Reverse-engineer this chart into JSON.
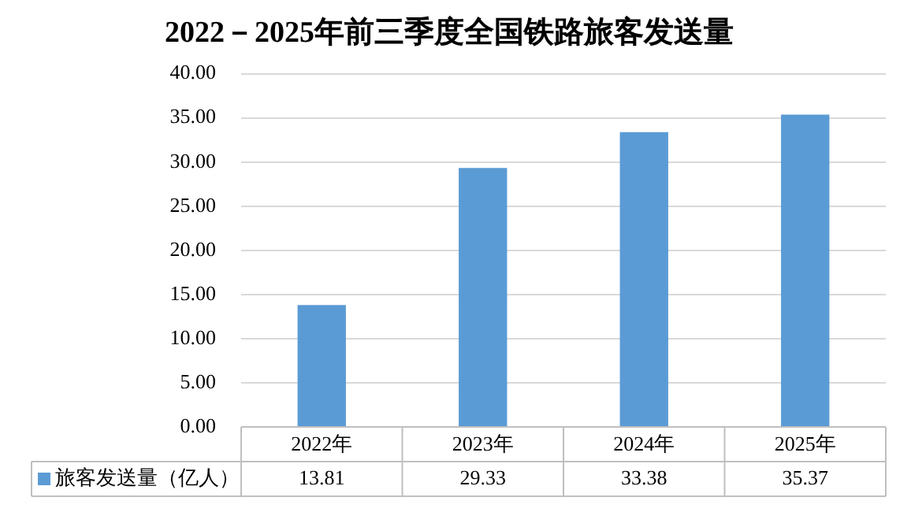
{
  "chart_data": {
    "type": "bar",
    "title": "2022－2025年前三季度全国铁路旅客发送量",
    "categories": [
      "2022年",
      "2023年",
      "2024年",
      "2025年"
    ],
    "series": [
      {
        "name": "旅客发送量（亿人）",
        "color": "#5b9bd5",
        "values": [
          13.81,
          29.33,
          33.38,
          35.37
        ]
      }
    ],
    "ylim": [
      0,
      40
    ],
    "yticks": [
      {
        "value": 0,
        "label": "0.00"
      },
      {
        "value": 5,
        "label": "5.00"
      },
      {
        "value": 10,
        "label": "10.00"
      },
      {
        "value": 15,
        "label": "15.00"
      },
      {
        "value": 20,
        "label": "20.00"
      },
      {
        "value": 25,
        "label": "25.00"
      },
      {
        "value": 30,
        "label": "30.00"
      },
      {
        "value": 35,
        "label": "35.00"
      },
      {
        "value": 40,
        "label": "40.00"
      }
    ],
    "grid": "y",
    "legend": "bottom",
    "data_labels": true
  }
}
